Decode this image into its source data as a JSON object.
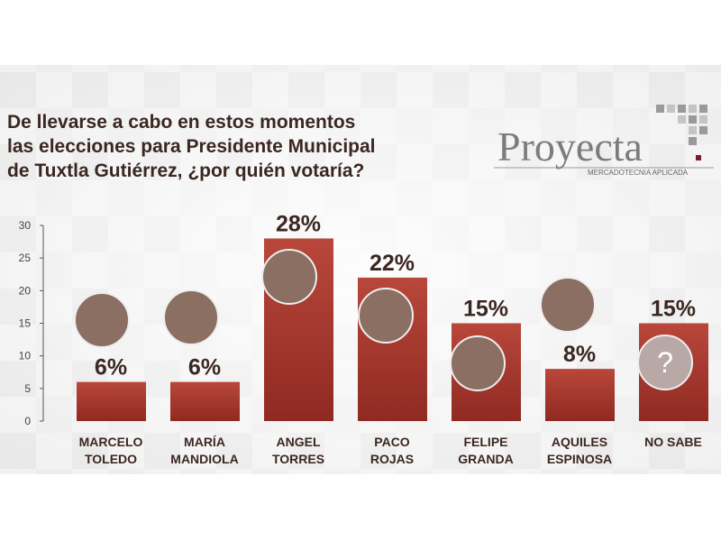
{
  "chart_data": {
    "type": "bar",
    "title": "De llevarse a cabo en estos momentos\nlas elecciones para Presidente Municipal\nde Tuxtla Gutiérrez, ¿por quién votaría?",
    "brand": "Proyecta",
    "brand_tagline": "MERCADOTECNIA APLICADA",
    "categories": [
      "MARCELO\nTOLEDO",
      "MARÍA\nMANDIOLA",
      "ANGEL\nTORRES",
      "PACO\nROJAS",
      "FELIPE\nGRANDA",
      "AQUILES\nESPINOSA",
      "NO SABE"
    ],
    "values": [
      6,
      6,
      28,
      22,
      15,
      8,
      15
    ],
    "value_labels": [
      "6%",
      "6%",
      "28%",
      "22%",
      "15%",
      "8%",
      "15%"
    ],
    "unknown_icon": "?",
    "color": "#a8372d",
    "ylim": [
      0,
      30
    ],
    "yticks": [
      0,
      5,
      10,
      15,
      20,
      25,
      30
    ]
  }
}
